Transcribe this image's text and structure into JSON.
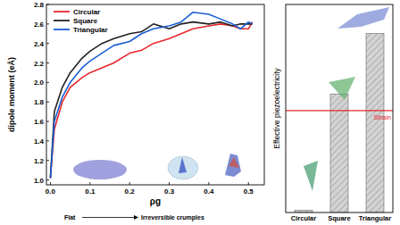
{
  "chart_data": [
    {
      "type": "line",
      "x_label": "ρg",
      "y_label": "dipole moment (eÅ)",
      "annotations": [
        "Flat",
        "Irreversible crumples"
      ],
      "legend": "top-left",
      "xlim": [
        -0.01,
        0.54
      ],
      "xticks": [
        {
          "value": 0,
          "label": "0.0"
        },
        {
          "value": 0.1,
          "label": "0.1"
        },
        {
          "value": 0.2,
          "label": "0.2"
        },
        {
          "value": 0.3,
          "label": "0.3"
        },
        {
          "value": 0.4,
          "label": "0.4"
        },
        {
          "value": 0.5,
          "label": "0.5"
        }
      ],
      "ylim": [
        0.95,
        2.8
      ],
      "yticks": [
        {
          "value": 1,
          "label": "1.0"
        },
        {
          "value": 1.2,
          "label": "1.2"
        },
        {
          "value": 1.4,
          "label": "1.4"
        },
        {
          "value": 1.6,
          "label": "1.6"
        },
        {
          "value": 1.8,
          "label": "1.8"
        },
        {
          "value": 2,
          "label": "2.0"
        },
        {
          "value": 2.2,
          "label": "2.2"
        },
        {
          "value": 2.4,
          "label": "2.4"
        },
        {
          "value": 2.6,
          "label": "2.6"
        },
        {
          "value": 2.8,
          "label": "2.8"
        }
      ],
      "x": [
        0,
        0.01,
        0.03,
        0.05,
        0.08,
        0.1,
        0.13,
        0.16,
        0.2,
        0.23,
        0.26,
        0.3,
        0.33,
        0.36,
        0.4,
        0.43,
        0.46,
        0.48,
        0.5,
        0.51
      ],
      "series": [
        {
          "name": "Circular",
          "color": "#e8262b",
          "values": [
            1.02,
            1.52,
            1.8,
            1.95,
            2.05,
            2.1,
            2.15,
            2.2,
            2.3,
            2.33,
            2.4,
            2.45,
            2.5,
            2.55,
            2.58,
            2.6,
            2.58,
            2.55,
            2.55,
            2.62
          ]
        },
        {
          "name": "Square",
          "color": "#222222",
          "values": [
            1.02,
            1.7,
            1.95,
            2.1,
            2.25,
            2.32,
            2.4,
            2.45,
            2.5,
            2.52,
            2.6,
            2.55,
            2.6,
            2.62,
            2.6,
            2.62,
            2.58,
            2.6,
            2.6,
            2.6
          ]
        },
        {
          "name": "Triangular",
          "color": "#1a5fd6",
          "values": [
            1.02,
            1.6,
            1.85,
            2.0,
            2.15,
            2.22,
            2.3,
            2.38,
            2.42,
            2.5,
            2.55,
            2.58,
            2.62,
            2.72,
            2.7,
            2.65,
            2.6,
            2.55,
            2.62,
            2.6
          ]
        }
      ]
    },
    {
      "type": "bar",
      "y_label": "Effective piezoelectricity",
      "categories": [
        "Circular",
        "Square",
        "Triangular"
      ],
      "values": [
        0.01,
        0.57,
        0.86
      ],
      "color": "#d3d3d3",
      "ylim": [
        0,
        1
      ],
      "tick_labels": "x",
      "reference_line": {
        "value": 0.49,
        "label": "Strain",
        "color": "#e8262b"
      }
    }
  ]
}
